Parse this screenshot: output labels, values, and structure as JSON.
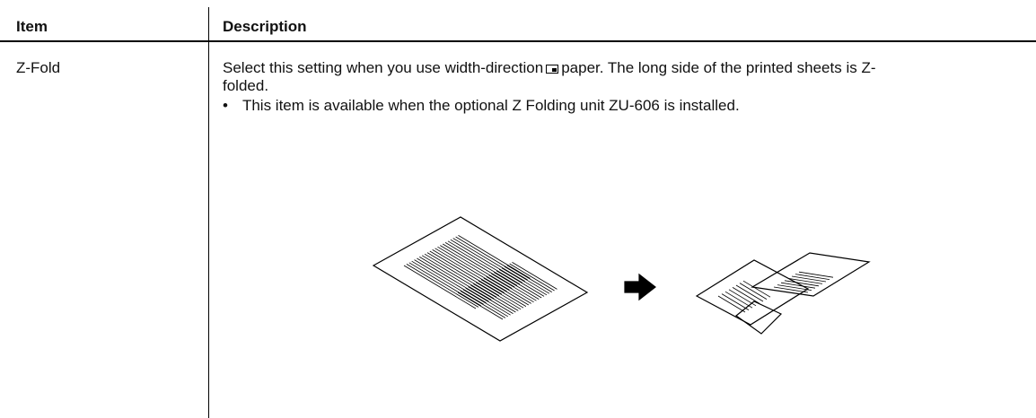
{
  "table": {
    "header": [
      "Item",
      "Description"
    ],
    "rows": [
      {
        "item": "Z-Fold",
        "description_before_icon": "Select this setting when you use width-direction",
        "description_after_icon": "paper. The long side of the printed sheets is Z-folded.",
        "bullet": "This item is available when the optional Z Folding unit ZU-606 is installed."
      }
    ]
  }
}
